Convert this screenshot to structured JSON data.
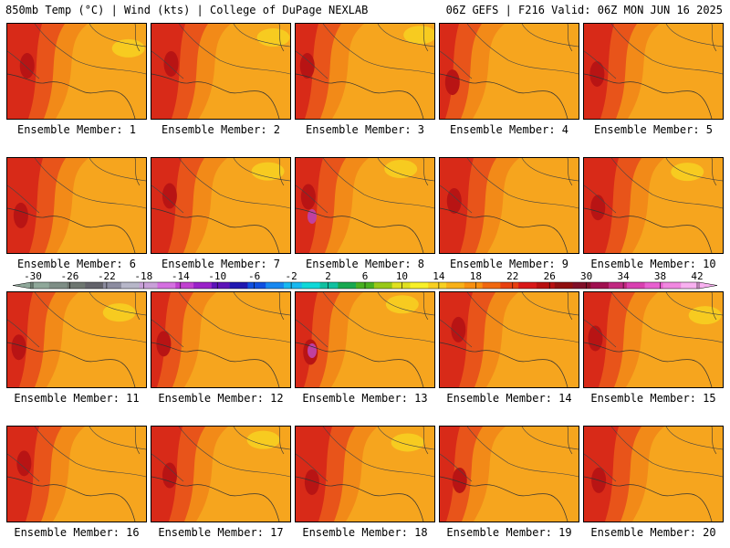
{
  "header": {
    "left": "850mb Temp (°C) | Wind (kts) | College of DuPage NEXLAB",
    "right": "06Z GEFS | F216 Valid: 06Z MON JUN 16 2025"
  },
  "members": [
    "Ensemble Member: 1",
    "Ensemble Member: 2",
    "Ensemble Member: 3",
    "Ensemble Member: 4",
    "Ensemble Member: 5",
    "Ensemble Member: 6",
    "Ensemble Member: 7",
    "Ensemble Member: 8",
    "Ensemble Member: 9",
    "Ensemble Member: 10",
    "Ensemble Member: 11",
    "Ensemble Member: 12",
    "Ensemble Member: 13",
    "Ensemble Member: 14",
    "Ensemble Member: 15",
    "Ensemble Member: 16",
    "Ensemble Member: 17",
    "Ensemble Member: 18",
    "Ensemble Member: 19",
    "Ensemble Member: 20"
  ],
  "colorbar": {
    "tick_labels": [
      "-30",
      "-26",
      "-22",
      "-18",
      "-14",
      "-10",
      "-6",
      "-2",
      "2",
      "6",
      "10",
      "14",
      "18",
      "22",
      "26",
      "30",
      "34",
      "38",
      "42"
    ],
    "colors": [
      "#8fa89a",
      "#7e8e86",
      "#6d7670",
      "#62626a",
      "#8c8ca0",
      "#b6b6c8",
      "#c8a0d8",
      "#d470e0",
      "#c040d0",
      "#9a22c8",
      "#5c14b8",
      "#2018b0",
      "#1050e0",
      "#1888f0",
      "#18b8f0",
      "#10d8d8",
      "#10c0a0",
      "#18a850",
      "#48b020",
      "#98c818",
      "#e0e020",
      "#f8f028",
      "#f8d020",
      "#f8b018",
      "#f89010",
      "#f06810",
      "#e84010",
      "#d81818",
      "#b81010",
      "#901010",
      "#801028",
      "#a01050",
      "#c02880",
      "#d840b0",
      "#e860d0",
      "#f088e0",
      "#f8b0f0"
    ]
  }
}
